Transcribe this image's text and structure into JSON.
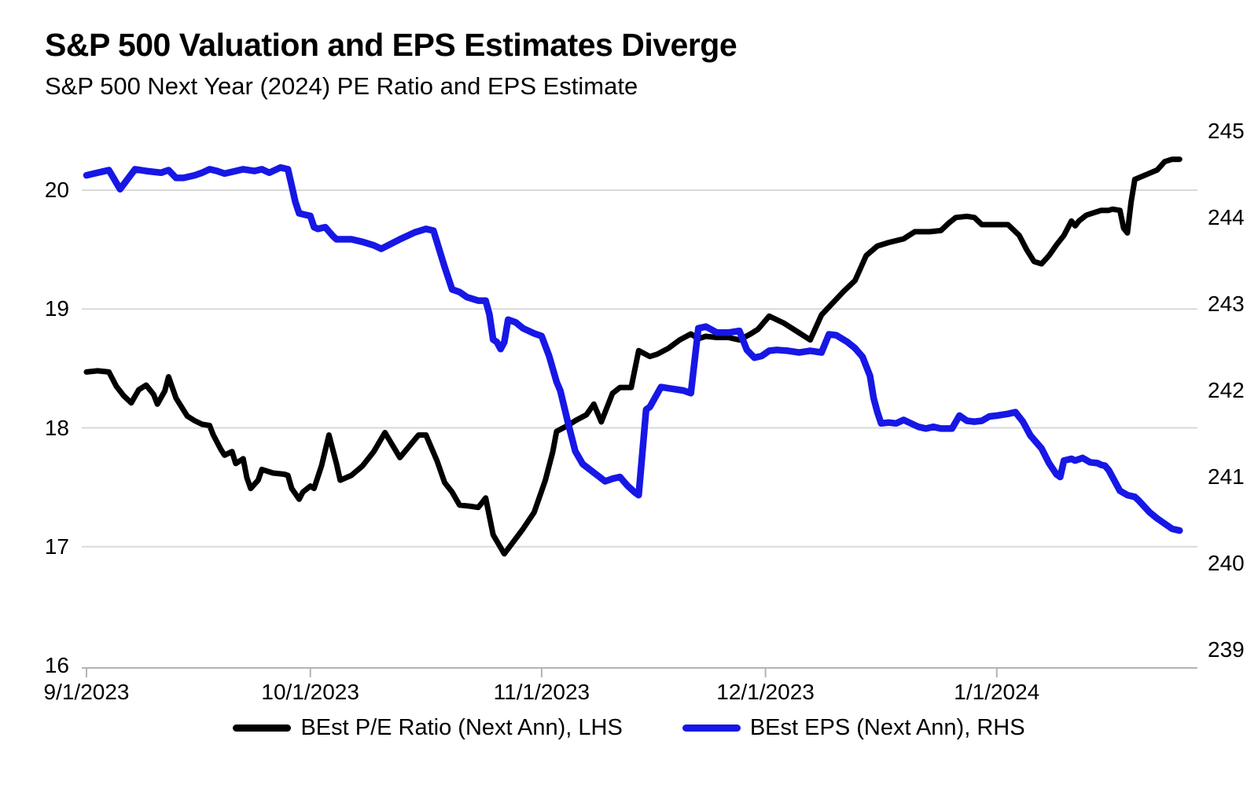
{
  "chart_data": {
    "type": "line",
    "title": "S&P 500 Valuation and EPS Estimates Diverge",
    "subtitle": "S&P 500 Next Year (2024) PE Ratio and EPS Estimate",
    "x_unit": "calendar days since 9/1/2023",
    "xlim": [
      0,
      149
    ],
    "x_ticks": [
      {
        "day": 0,
        "label": "9/1/2023"
      },
      {
        "day": 30,
        "label": "10/1/2023"
      },
      {
        "day": 61,
        "label": "11/1/2023"
      },
      {
        "day": 91,
        "label": "12/1/2023"
      },
      {
        "day": 122,
        "label": "1/1/2024"
      }
    ],
    "left_axis": {
      "side": "left",
      "ticks": [
        16,
        17,
        18,
        19,
        20
      ],
      "lim": [
        16,
        20.58
      ]
    },
    "right_axis": {
      "side": "right",
      "ticks": [
        239,
        240,
        241,
        242,
        243,
        244,
        245
      ],
      "lim": [
        238.8,
        245.1
      ]
    },
    "grid": "horizontal gridlines at left-axis integers",
    "legend_position": "bottom-center",
    "style": {
      "background": "#ffffff",
      "grid_color": "#d9d9d9",
      "axis_color": "#b3b3b3",
      "text_color": "#000000"
    },
    "series": [
      {
        "id": "pe-ratio",
        "name": "BEst P/E Ratio (Next Ann), LHS",
        "axis": "left",
        "color": "#000000",
        "width": 7,
        "points": [
          [
            0,
            18.47
          ],
          [
            1.5,
            18.48
          ],
          [
            3,
            18.47
          ],
          [
            4,
            18.35
          ],
          [
            5,
            18.27
          ],
          [
            6,
            18.21
          ],
          [
            7,
            18.32
          ],
          [
            8,
            18.36
          ],
          [
            9,
            18.28
          ],
          [
            9.5,
            18.2
          ],
          [
            10.5,
            18.31
          ],
          [
            11,
            18.43
          ],
          [
            12,
            18.25
          ],
          [
            13.5,
            18.1
          ],
          [
            14.5,
            18.06
          ],
          [
            15.5,
            18.03
          ],
          [
            16.5,
            18.02
          ],
          [
            17,
            17.94
          ],
          [
            18,
            17.82
          ],
          [
            18.5,
            17.77
          ],
          [
            19.5,
            17.8
          ],
          [
            20,
            17.7
          ],
          [
            21,
            17.74
          ],
          [
            21.5,
            17.58
          ],
          [
            22,
            17.49
          ],
          [
            23,
            17.56
          ],
          [
            23.5,
            17.65
          ],
          [
            25,
            17.62
          ],
          [
            26.5,
            17.61
          ],
          [
            27,
            17.6
          ],
          [
            27.5,
            17.49
          ],
          [
            28.5,
            17.4
          ],
          [
            29,
            17.46
          ],
          [
            30,
            17.51
          ],
          [
            30.5,
            17.49
          ],
          [
            31.5,
            17.68
          ],
          [
            32.5,
            17.94
          ],
          [
            33.5,
            17.7
          ],
          [
            34,
            17.56
          ],
          [
            35.5,
            17.6
          ],
          [
            37,
            17.68
          ],
          [
            38.5,
            17.8
          ],
          [
            40,
            17.96
          ],
          [
            42,
            17.75
          ],
          [
            44.5,
            17.94
          ],
          [
            45.5,
            17.94
          ],
          [
            47,
            17.72
          ],
          [
            48,
            17.54
          ],
          [
            49,
            17.46
          ],
          [
            50,
            17.35
          ],
          [
            51.5,
            17.34
          ],
          [
            52.5,
            17.33
          ],
          [
            53,
            17.37
          ],
          [
            53.5,
            17.41
          ],
          [
            54.5,
            17.1
          ],
          [
            56,
            16.94
          ],
          [
            58.5,
            17.15
          ],
          [
            60,
            17.29
          ],
          [
            61.5,
            17.56
          ],
          [
            62.5,
            17.8
          ],
          [
            63,
            17.97
          ],
          [
            64.5,
            18.02
          ],
          [
            65.5,
            18.06
          ],
          [
            67,
            18.11
          ],
          [
            68,
            18.2
          ],
          [
            69,
            18.05
          ],
          [
            70.5,
            18.29
          ],
          [
            71.5,
            18.34
          ],
          [
            73,
            18.34
          ],
          [
            74,
            18.65
          ],
          [
            75.5,
            18.6
          ],
          [
            76.5,
            18.62
          ],
          [
            78,
            18.67
          ],
          [
            79.5,
            18.74
          ],
          [
            81,
            18.79
          ],
          [
            82,
            18.75
          ],
          [
            83,
            18.77
          ],
          [
            84.5,
            18.76
          ],
          [
            86,
            18.76
          ],
          [
            87.5,
            18.74
          ],
          [
            89,
            18.79
          ],
          [
            90,
            18.83
          ],
          [
            91.5,
            18.94
          ],
          [
            93.5,
            18.88
          ],
          [
            95,
            18.82
          ],
          [
            97,
            18.74
          ],
          [
            98.5,
            18.95
          ],
          [
            100,
            19.05
          ],
          [
            101.5,
            19.15
          ],
          [
            103,
            19.24
          ],
          [
            104.5,
            19.45
          ],
          [
            106,
            19.53
          ],
          [
            107.5,
            19.56
          ],
          [
            109.5,
            19.59
          ],
          [
            111,
            19.65
          ],
          [
            113,
            19.65
          ],
          [
            114.5,
            19.66
          ],
          [
            115.5,
            19.72
          ],
          [
            116.5,
            19.77
          ],
          [
            118,
            19.78
          ],
          [
            119,
            19.77
          ],
          [
            120,
            19.71
          ],
          [
            122,
            19.71
          ],
          [
            123.5,
            19.71
          ],
          [
            125,
            19.62
          ],
          [
            126,
            19.5
          ],
          [
            127,
            19.4
          ],
          [
            128,
            19.38
          ],
          [
            129,
            19.45
          ],
          [
            130,
            19.54
          ],
          [
            131,
            19.62
          ],
          [
            132,
            19.74
          ],
          [
            132.5,
            19.7
          ],
          [
            133,
            19.74
          ],
          [
            134,
            19.79
          ],
          [
            135,
            19.81
          ],
          [
            136,
            19.83
          ],
          [
            137,
            19.83
          ],
          [
            137.5,
            19.84
          ],
          [
            138.5,
            19.83
          ],
          [
            139,
            19.68
          ],
          [
            139.5,
            19.64
          ],
          [
            140,
            19.9
          ],
          [
            140.5,
            20.09
          ],
          [
            142,
            20.13
          ],
          [
            143.5,
            20.17
          ],
          [
            144.5,
            20.24
          ],
          [
            145.5,
            20.26
          ],
          [
            146.5,
            20.26
          ]
        ]
      },
      {
        "id": "eps",
        "name": "BEst EPS (Next Ann), RHS",
        "axis": "right",
        "color": "#1717e6",
        "width": 8.5,
        "points": [
          [
            0,
            244.49
          ],
          [
            1,
            244.51
          ],
          [
            2,
            244.53
          ],
          [
            3,
            244.55
          ],
          [
            4.5,
            244.33
          ],
          [
            6.5,
            244.56
          ],
          [
            8,
            244.54
          ],
          [
            10,
            244.52
          ],
          [
            11,
            244.55
          ],
          [
            12,
            244.46
          ],
          [
            13,
            244.46
          ],
          [
            14.5,
            244.49
          ],
          [
            15.5,
            244.52
          ],
          [
            16.5,
            244.56
          ],
          [
            17.5,
            244.54
          ],
          [
            18.5,
            244.51
          ],
          [
            20,
            244.54
          ],
          [
            21,
            244.56
          ],
          [
            22.5,
            244.54
          ],
          [
            23.5,
            244.56
          ],
          [
            24.5,
            244.52
          ],
          [
            26,
            244.58
          ],
          [
            27,
            244.56
          ],
          [
            27.5,
            244.37
          ],
          [
            28,
            244.18
          ],
          [
            28.5,
            244.05
          ],
          [
            29,
            244.04
          ],
          [
            30,
            244.02
          ],
          [
            30.5,
            243.89
          ],
          [
            31,
            243.87
          ],
          [
            32,
            243.89
          ],
          [
            33,
            243.79
          ],
          [
            33.5,
            243.75
          ],
          [
            35.5,
            243.75
          ],
          [
            37,
            243.72
          ],
          [
            38.5,
            243.68
          ],
          [
            39.5,
            243.64
          ],
          [
            42,
            243.75
          ],
          [
            44,
            243.83
          ],
          [
            45.5,
            243.87
          ],
          [
            46.5,
            243.85
          ],
          [
            48,
            243.43
          ],
          [
            49,
            243.17
          ],
          [
            50,
            243.14
          ],
          [
            51,
            243.08
          ],
          [
            52.5,
            243.04
          ],
          [
            53.5,
            243.04
          ],
          [
            54,
            242.88
          ],
          [
            54.5,
            242.59
          ],
          [
            55,
            242.56
          ],
          [
            55.5,
            242.48
          ],
          [
            56,
            242.56
          ],
          [
            56.5,
            242.82
          ],
          [
            57.5,
            242.79
          ],
          [
            58.5,
            242.72
          ],
          [
            60,
            242.66
          ],
          [
            61,
            242.63
          ],
          [
            62,
            242.4
          ],
          [
            63,
            242.1
          ],
          [
            63.5,
            242.0
          ],
          [
            64.5,
            241.64
          ],
          [
            65.5,
            241.3
          ],
          [
            66.5,
            241.15
          ],
          [
            68,
            241.05
          ],
          [
            69.5,
            240.95
          ],
          [
            70.5,
            240.98
          ],
          [
            71.5,
            241.0
          ],
          [
            72.5,
            240.9
          ],
          [
            73.5,
            240.82
          ],
          [
            74,
            240.79
          ],
          [
            75,
            241.78
          ],
          [
            75.5,
            241.81
          ],
          [
            77,
            242.04
          ],
          [
            78.5,
            242.02
          ],
          [
            80,
            242.0
          ],
          [
            81,
            241.97
          ],
          [
            82,
            242.72
          ],
          [
            83,
            242.74
          ],
          [
            84.5,
            242.67
          ],
          [
            86,
            242.67
          ],
          [
            87.5,
            242.69
          ],
          [
            88.5,
            242.47
          ],
          [
            89.5,
            242.38
          ],
          [
            90.5,
            242.4
          ],
          [
            91.5,
            242.46
          ],
          [
            92.5,
            242.47
          ],
          [
            94,
            242.46
          ],
          [
            95.5,
            242.44
          ],
          [
            97,
            242.46
          ],
          [
            98.5,
            242.44
          ],
          [
            99.5,
            242.65
          ],
          [
            100.5,
            242.64
          ],
          [
            102,
            242.56
          ],
          [
            103,
            242.49
          ],
          [
            104,
            242.39
          ],
          [
            105,
            242.17
          ],
          [
            105.5,
            241.91
          ],
          [
            106,
            241.75
          ],
          [
            106.5,
            241.62
          ],
          [
            107.5,
            241.63
          ],
          [
            108.5,
            241.62
          ],
          [
            109.5,
            241.66
          ],
          [
            110.5,
            241.62
          ],
          [
            111.5,
            241.58
          ],
          [
            112.5,
            241.56
          ],
          [
            113.5,
            241.58
          ],
          [
            114.5,
            241.56
          ],
          [
            116,
            241.56
          ],
          [
            117,
            241.71
          ],
          [
            118,
            241.65
          ],
          [
            119,
            241.64
          ],
          [
            120,
            241.65
          ],
          [
            121,
            241.7
          ],
          [
            122,
            241.71
          ],
          [
            123.5,
            241.73
          ],
          [
            124.5,
            241.75
          ],
          [
            125.5,
            241.64
          ],
          [
            126.5,
            241.48
          ],
          [
            128,
            241.33
          ],
          [
            129,
            241.16
          ],
          [
            130,
            241.03
          ],
          [
            130.5,
            241.0
          ],
          [
            131,
            241.19
          ],
          [
            132,
            241.21
          ],
          [
            132.5,
            241.19
          ],
          [
            133.5,
            241.22
          ],
          [
            134.5,
            241.17
          ],
          [
            135.5,
            241.16
          ],
          [
            136,
            241.14
          ],
          [
            136.5,
            241.13
          ],
          [
            137,
            241.08
          ],
          [
            138.5,
            240.84
          ],
          [
            139.5,
            240.79
          ],
          [
            140.5,
            240.77
          ],
          [
            141,
            240.73
          ],
          [
            142.5,
            240.59
          ],
          [
            143.5,
            240.52
          ],
          [
            145,
            240.43
          ],
          [
            145.5,
            240.4
          ],
          [
            146.5,
            240.38
          ]
        ]
      }
    ]
  }
}
